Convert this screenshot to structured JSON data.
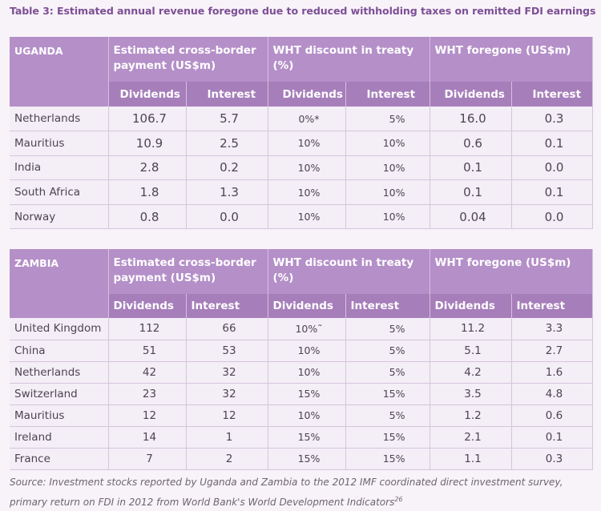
{
  "caption": "Table 3: Estimated annual revenue foregone due to reduced withholding taxes on remitted FDI earnings",
  "headers": {
    "cross_border": "Estimated cross-border payment (US$m)",
    "wht_discount": "WHT discount in treaty (%)",
    "wht_foregone": "WHT foregone (US$m)",
    "dividends": "Dividends",
    "interest": "Interest"
  },
  "uganda": {
    "country": "UGANDA",
    "rows": [
      {
        "country": "Netherlands",
        "pay_div": "106.7",
        "pay_int": "5.7",
        "wht_div": "0%*",
        "wht_int": "5%",
        "fg_div": "16.0",
        "fg_int": "0.3"
      },
      {
        "country": "Mauritius",
        "pay_div": "10.9",
        "pay_int": "2.5",
        "wht_div": "10%",
        "wht_int": "10%",
        "fg_div": "0.6",
        "fg_int": "0.1"
      },
      {
        "country": "India",
        "pay_div": "2.8",
        "pay_int": "0.2",
        "wht_div": "10%",
        "wht_int": "10%",
        "fg_div": "0.1",
        "fg_int": "0.0"
      },
      {
        "country": "South Africa",
        "pay_div": "1.8",
        "pay_int": "1.3",
        "wht_div": "10%",
        "wht_int": "10%",
        "fg_div": "0.1",
        "fg_int": "0.1"
      },
      {
        "country": "Norway",
        "pay_div": "0.8",
        "pay_int": "0.0",
        "wht_div": "10%",
        "wht_int": "10%",
        "fg_div": "0.04",
        "fg_int": "0.0"
      }
    ]
  },
  "zambia": {
    "country": "ZAMBIA",
    "rows": [
      {
        "country": "United Kingdom",
        "pay_div": "112",
        "pay_int": "66",
        "wht_div": "10%˜",
        "wht_int": "5%",
        "fg_div": "11.2",
        "fg_int": "3.3"
      },
      {
        "country": "China",
        "pay_div": "51",
        "pay_int": "53",
        "wht_div": "10%",
        "wht_int": "5%",
        "fg_div": "5.1",
        "fg_int": "2.7"
      },
      {
        "country": "Netherlands",
        "pay_div": "42",
        "pay_int": "32",
        "wht_div": "10%",
        "wht_int": "5%",
        "fg_div": "4.2",
        "fg_int": "1.6"
      },
      {
        "country": "Switzerland",
        "pay_div": "23",
        "pay_int": "32",
        "wht_div": "15%",
        "wht_int": "15%",
        "fg_div": "3.5",
        "fg_int": "4.8"
      },
      {
        "country": "Mauritius",
        "pay_div": "12",
        "pay_int": "12",
        "wht_div": "10%",
        "wht_int": "5%",
        "fg_div": "1.2",
        "fg_int": "0.6"
      },
      {
        "country": "Ireland",
        "pay_div": "14",
        "pay_int": "1",
        "wht_div": "15%",
        "wht_int": "15%",
        "fg_div": "2.1",
        "fg_int": "0.1"
      },
      {
        "country": "France",
        "pay_div": "7",
        "pay_int": "2",
        "wht_div": "15%",
        "wht_int": "15%",
        "fg_div": "1.1",
        "fg_int": "0.3"
      }
    ]
  },
  "source": {
    "text": "Source: Investment stocks reported by Uganda and Zambia to the 2012 IMF coordinated direct investment survey, primary return on FDI in 2012 from World Bank's World Development Indicators",
    "footnote_ref": "26"
  }
}
